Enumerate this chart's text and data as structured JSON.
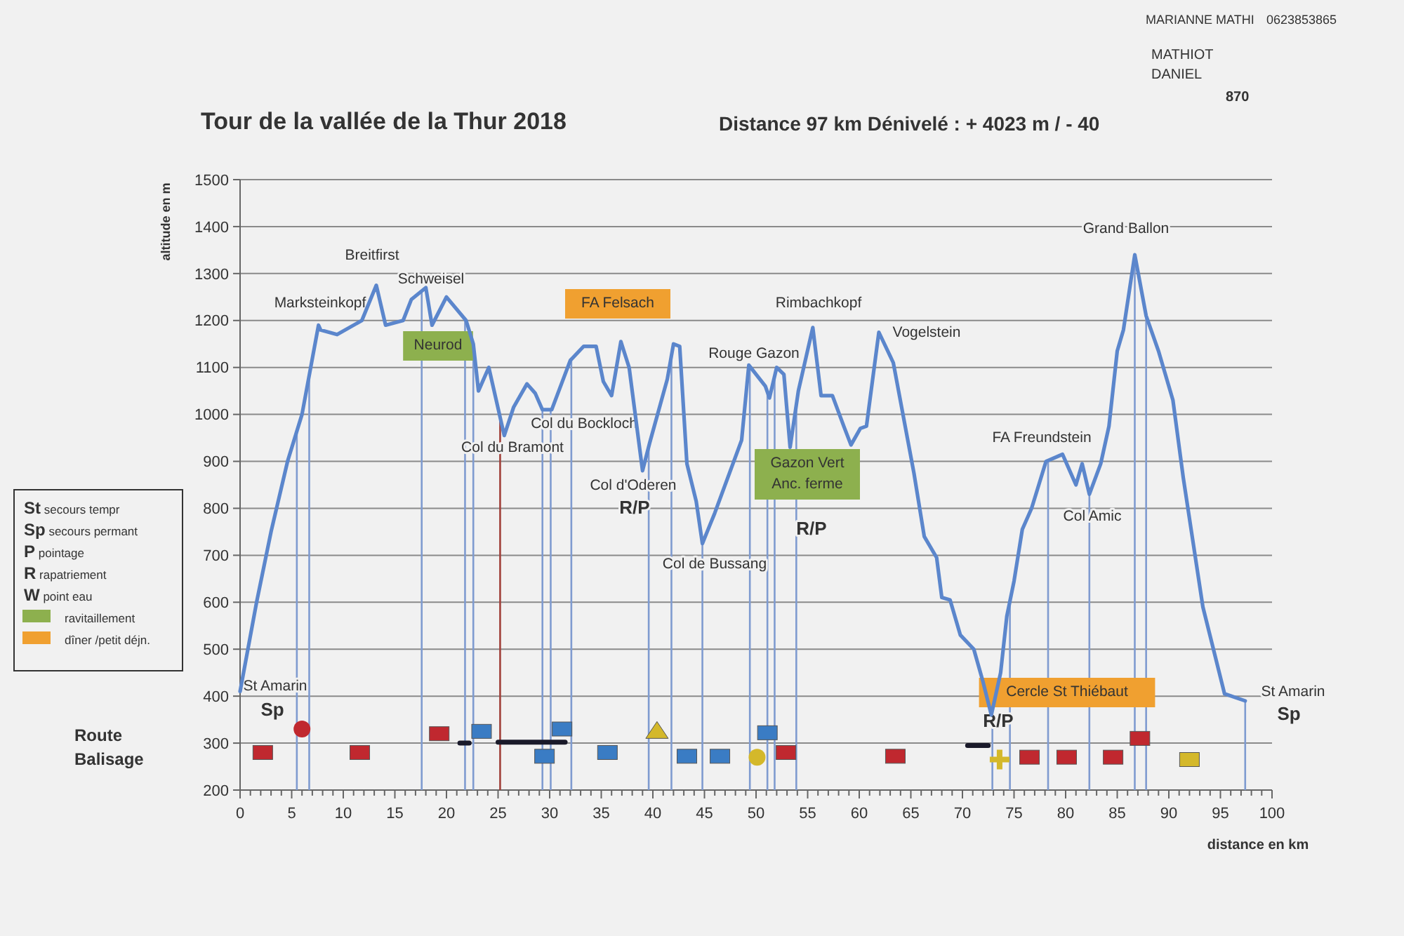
{
  "chart_data": {
    "type": "line",
    "title": "Tour de la vallée de la Thur 2018",
    "subtitle": "Distance  97 km  Dénivelé : + 4023 m / - 40",
    "xlabel": "distance en km",
    "ylabel": "altitude en m",
    "xlim": [
      0,
      100
    ],
    "ylim": [
      200,
      1500
    ],
    "xticks": [
      0,
      {
        "value": 1,
        "label": null
      },
      {
        "value": 2,
        "label": null
      },
      {
        "value": 3,
        "label": null
      },
      {
        "value": 4,
        "label": null
      },
      5,
      {
        "value": 6,
        "label": null
      },
      {
        "value": 7,
        "label": null
      },
      {
        "value": 8,
        "label": null
      },
      {
        "value": 9,
        "label": null
      },
      10,
      {
        "value": 11,
        "label": null
      },
      {
        "value": 12,
        "label": null
      },
      {
        "value": 13,
        "label": null
      },
      {
        "value": 14,
        "label": null
      },
      15,
      {
        "value": 16,
        "label": null
      },
      {
        "value": 17,
        "label": null
      },
      {
        "value": 18,
        "label": null
      },
      {
        "value": 19,
        "label": null
      },
      20,
      {
        "value": 21,
        "label": null
      },
      {
        "value": 22,
        "label": null
      },
      {
        "value": 23,
        "label": null
      },
      {
        "value": 24,
        "label": null
      },
      25,
      {
        "value": 26,
        "label": null
      },
      {
        "value": 27,
        "label": null
      },
      {
        "value": 28,
        "label": null
      },
      {
        "value": 29,
        "label": null
      },
      30,
      {
        "value": 31,
        "label": null
      },
      {
        "value": 32,
        "label": null
      },
      {
        "value": 33,
        "label": null
      },
      {
        "value": 34,
        "label": null
      },
      35,
      {
        "value": 36,
        "label": null
      },
      {
        "value": 37,
        "label": null
      },
      {
        "value": 38,
        "label": null
      },
      {
        "value": 39,
        "label": null
      },
      40,
      {
        "value": 41,
        "label": null
      },
      {
        "value": 42,
        "label": null
      },
      {
        "value": 43,
        "label": null
      },
      {
        "value": 44,
        "label": null
      },
      45,
      {
        "value": 46,
        "label": null
      },
      {
        "value": 47,
        "label": null
      },
      {
        "value": 48,
        "label": null
      },
      {
        "value": 49,
        "label": null
      },
      50,
      {
        "value": 51,
        "label": null
      },
      {
        "value": 52,
        "label": null
      },
      {
        "value": 53,
        "label": null
      },
      {
        "value": 54,
        "label": null
      },
      55,
      {
        "value": 56,
        "label": null
      },
      {
        "value": 57,
        "label": null
      },
      {
        "value": 58,
        "label": null
      },
      {
        "value": 59,
        "label": null
      },
      60,
      {
        "value": 61,
        "label": null
      },
      {
        "value": 62,
        "label": null
      },
      {
        "value": 63,
        "label": null
      },
      {
        "value": 64,
        "label": null
      },
      65,
      {
        "value": 66,
        "label": null
      },
      {
        "value": 67,
        "label": null
      },
      {
        "value": 68,
        "label": null
      },
      {
        "value": 69,
        "label": null
      },
      70,
      {
        "value": 71,
        "label": null
      },
      {
        "value": 72,
        "label": null
      },
      {
        "value": 73,
        "label": null
      },
      {
        "value": 74,
        "label": null
      },
      75,
      {
        "value": 76,
        "label": null
      },
      {
        "value": 77,
        "label": null
      },
      {
        "value": 78,
        "label": null
      },
      {
        "value": 79,
        "label": null
      },
      80,
      {
        "value": 81,
        "label": null
      },
      {
        "value": 82,
        "label": null
      },
      {
        "value": 83,
        "label": null
      },
      {
        "value": 84,
        "label": null
      },
      85,
      {
        "value": 86,
        "label": null
      },
      {
        "value": 87,
        "label": null
      },
      {
        "value": 88,
        "label": null
      },
      {
        "value": 89,
        "label": null
      },
      90,
      {
        "value": 91,
        "label": null
      },
      {
        "value": 92,
        "label": null
      },
      {
        "value": 93,
        "label": null
      },
      {
        "value": 94,
        "label": null
      },
      95,
      {
        "value": 96,
        "label": null
      },
      {
        "value": 97,
        "label": null
      },
      {
        "value": 98,
        "label": null
      },
      {
        "value": 99,
        "label": null
      },
      100
    ],
    "yticks": [
      200,
      300,
      400,
      500,
      600,
      700,
      800,
      900,
      1000,
      1100,
      1200,
      1300,
      1400,
      1500
    ],
    "grid": "y",
    "legend": false,
    "series": [
      {
        "color": "#5b86cc",
        "x": [
          0,
          1.6,
          3.0,
          4.6,
          6.0,
          7.6,
          7.8,
          9.4,
          11.8,
          13.2,
          14.1,
          15.8,
          16.6,
          18.0,
          18.6,
          20.0,
          21.9,
          22.6,
          23.1,
          24.1,
          25.6,
          26.5,
          27.8,
          28.6,
          29.3,
          30.2,
          32.0,
          33.3,
          34.5,
          35.2,
          36.0,
          36.9,
          37.7,
          39.0,
          39.7,
          41.4,
          42.0,
          42.6,
          43.3,
          44.2,
          44.8,
          46.0,
          48.6,
          49.3,
          50.9,
          51.3,
          52.0,
          52.7,
          53.3,
          54.1,
          55.5,
          56.3,
          57.4,
          58.5,
          59.2,
          60.1,
          60.7,
          61.9,
          63.3,
          65.3,
          66.3,
          67.5,
          68.0,
          68.8,
          69.8,
          71.1,
          72.0,
          72.8,
          73.7,
          74.3,
          75.0,
          75.8,
          76.7,
          78.1,
          79.7,
          81.0,
          81.6,
          82.3,
          83.4,
          84.2,
          85.0,
          85.6,
          86.7,
          87.8,
          89.0,
          90.4,
          91.4,
          93.3,
          95.4,
          97.4
        ],
        "values": [
          410,
          600,
          750,
          900,
          1000,
          1190,
          1180,
          1170,
          1200,
          1275,
          1190,
          1200,
          1245,
          1270,
          1190,
          1250,
          1200,
          1150,
          1050,
          1100,
          955,
          1015,
          1065,
          1045,
          1010,
          1010,
          1115,
          1145,
          1145,
          1070,
          1040,
          1155,
          1100,
          880,
          940,
          1075,
          1150,
          1145,
          895,
          815,
          725,
          790,
          945,
          1105,
          1060,
          1035,
          1100,
          1085,
          930,
          1050,
          1185,
          1040,
          1040,
          975,
          935,
          970,
          975,
          1175,
          1110,
          875,
          740,
          695,
          610,
          605,
          530,
          500,
          430,
          360,
          450,
          570,
          645,
          755,
          800,
          900,
          915,
          850,
          895,
          830,
          895,
          975,
          1135,
          1180,
          1340,
          1210,
          1135,
          1030,
          865,
          590,
          405,
          390
        ]
      },
      {
        "type": "line",
        "color": "#1a1a2a",
        "x": [
          21.3,
          22.2,
          23,
          25,
          31.5,
          32,
          70.5,
          72.5
        ],
        "values": [
          300,
          300,
          null,
          302,
          302,
          null,
          295,
          295
        ]
      },
      {
        "type": "scatter",
        "marker": "square",
        "color": "#c0282f",
        "x": [
          2.2,
          19.3,
          52.9,
          80.1,
          87.2,
          11.6,
          63.5,
          76.5,
          84.6
        ],
        "values": [
          280,
          320,
          280,
          270,
          310,
          280,
          272,
          270,
          270
        ]
      },
      {
        "type": "scatter",
        "marker": "square",
        "color": "#3a7cc4",
        "x": [
          23.4,
          29.5,
          35.6,
          43.3,
          51.1,
          31.2,
          46.5
        ],
        "values": [
          325,
          272,
          280,
          272,
          322,
          330,
          272
        ]
      },
      {
        "type": "scatter",
        "marker": "circle",
        "color": "#c0282f",
        "x": [
          6.0
        ],
        "values": [
          330
        ]
      },
      {
        "type": "scatter",
        "marker": "triangle",
        "color": "#d4b82a",
        "x": [
          40.4
        ],
        "values": [
          325
        ]
      },
      {
        "type": "scatter",
        "marker": "circle",
        "color": "#d4b82a",
        "x": [
          50.1
        ],
        "values": [
          270
        ]
      },
      {
        "type": "scatter",
        "marker": "cross",
        "color": "#d4b82a",
        "x": [
          73.6
        ],
        "values": [
          265
        ]
      },
      {
        "type": "scatter",
        "marker": "square",
        "color": "#d4b82a",
        "x": [
          92.0
        ],
        "values": [
          265
        ]
      }
    ],
    "ref_lines": [
      {
        "axis": "x",
        "value": 5.5,
        "color": "#7f9bd0"
      },
      {
        "axis": "x",
        "value": 6.7,
        "color": "#7f9bd0"
      },
      {
        "axis": "x",
        "value": 17.6,
        "color": "#7f9bd0"
      },
      {
        "axis": "x",
        "value": 21.8,
        "color": "#7f9bd0"
      },
      {
        "axis": "x",
        "value": 22.6,
        "color": "#7f9bd0"
      },
      {
        "axis": "x",
        "value": 25.2,
        "color": "#a0403a"
      },
      {
        "axis": "x",
        "value": 29.3,
        "color": "#7f9bd0"
      },
      {
        "axis": "x",
        "value": 30.1,
        "color": "#7f9bd0"
      },
      {
        "axis": "x",
        "value": 32.1,
        "color": "#7f9bd0"
      },
      {
        "axis": "x",
        "value": 39.6,
        "color": "#7f9bd0"
      },
      {
        "axis": "x",
        "value": 41.8,
        "color": "#7f9bd0"
      },
      {
        "axis": "x",
        "value": 44.8,
        "color": "#7f9bd0"
      },
      {
        "axis": "x",
        "value": 49.4,
        "color": "#7f9bd0"
      },
      {
        "axis": "x",
        "value": 51.1,
        "color": "#7f9bd0"
      },
      {
        "axis": "x",
        "value": 51.8,
        "color": "#7f9bd0"
      },
      {
        "axis": "x",
        "value": 53.9,
        "color": "#7f9bd0"
      },
      {
        "axis": "x",
        "value": 72.9,
        "color": "#7f9bd0"
      },
      {
        "axis": "x",
        "value": 74.6,
        "color": "#7f9bd0"
      },
      {
        "axis": "x",
        "value": 78.3,
        "color": "#7f9bd0"
      },
      {
        "axis": "x",
        "value": 82.3,
        "color": "#7f9bd0"
      },
      {
        "axis": "x",
        "value": 86.7,
        "color": "#7f9bd0"
      },
      {
        "axis": "x",
        "value": 87.8,
        "color": "#7f9bd0"
      },
      {
        "axis": "x",
        "value": 97.4,
        "color": "#7f9bd0"
      }
    ],
    "annotations": [
      "St secours tempr",
      "Sp secours permant",
      "P pointage",
      "R rapatriement",
      "W point eau",
      "ravitaillement",
      "dîner /petit déjn.",
      "Route\nBalisage",
      "MARIANNE MATHI",
      "0623853865",
      "MATHIOT\nDANIEL",
      "870",
      "St Amarin",
      "Sp",
      "Marksteinkopf",
      "Breitfirst",
      "Schweisel",
      "Neurod",
      "FA Felsach",
      "Col du Bramont",
      "Col du Bockloch",
      "Col d'Oderen",
      "R/P",
      "Rouge Gazon",
      "Rimbachkopf",
      "Gazon Vert\nAnc. ferme",
      "R/P",
      "Col de Bussang",
      "Vogelstein",
      "FA Freundstein",
      "Col Amic",
      "Grand Ballon",
      "Cercle St Thiébaut",
      "R/P",
      "St Amarin",
      "Sp"
    ]
  }
}
